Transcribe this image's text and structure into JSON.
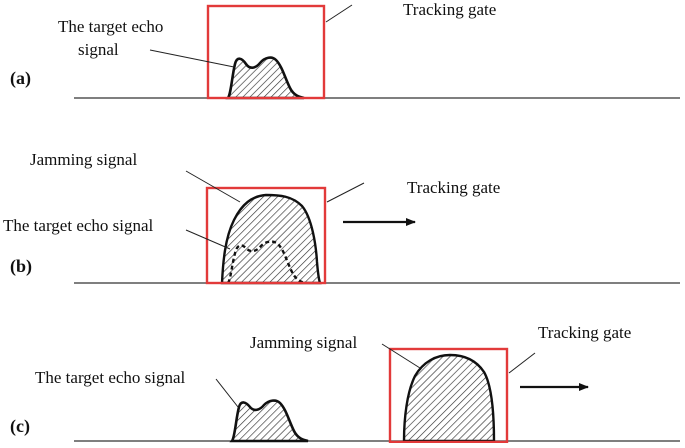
{
  "colors": {
    "gate": "#e23a3a",
    "signal_outline": "#111111",
    "hatch": "#333333",
    "baseline": "#333333"
  },
  "icons": [
    "hatch-pattern",
    "right-arrow-icon"
  ],
  "panels": [
    {
      "label": "(a)",
      "echo_label_line1": "The target echo",
      "echo_label_line2": "signal",
      "gate_label": "Tracking gate"
    },
    {
      "label": "(b)",
      "jamming_label": "Jamming signal",
      "echo_label": "The target echo signal",
      "gate_label": "Tracking gate"
    },
    {
      "label": "(c)",
      "jamming_label": "Jamming signal",
      "echo_label": "The target echo signal",
      "gate_label": "Tracking gate"
    }
  ]
}
